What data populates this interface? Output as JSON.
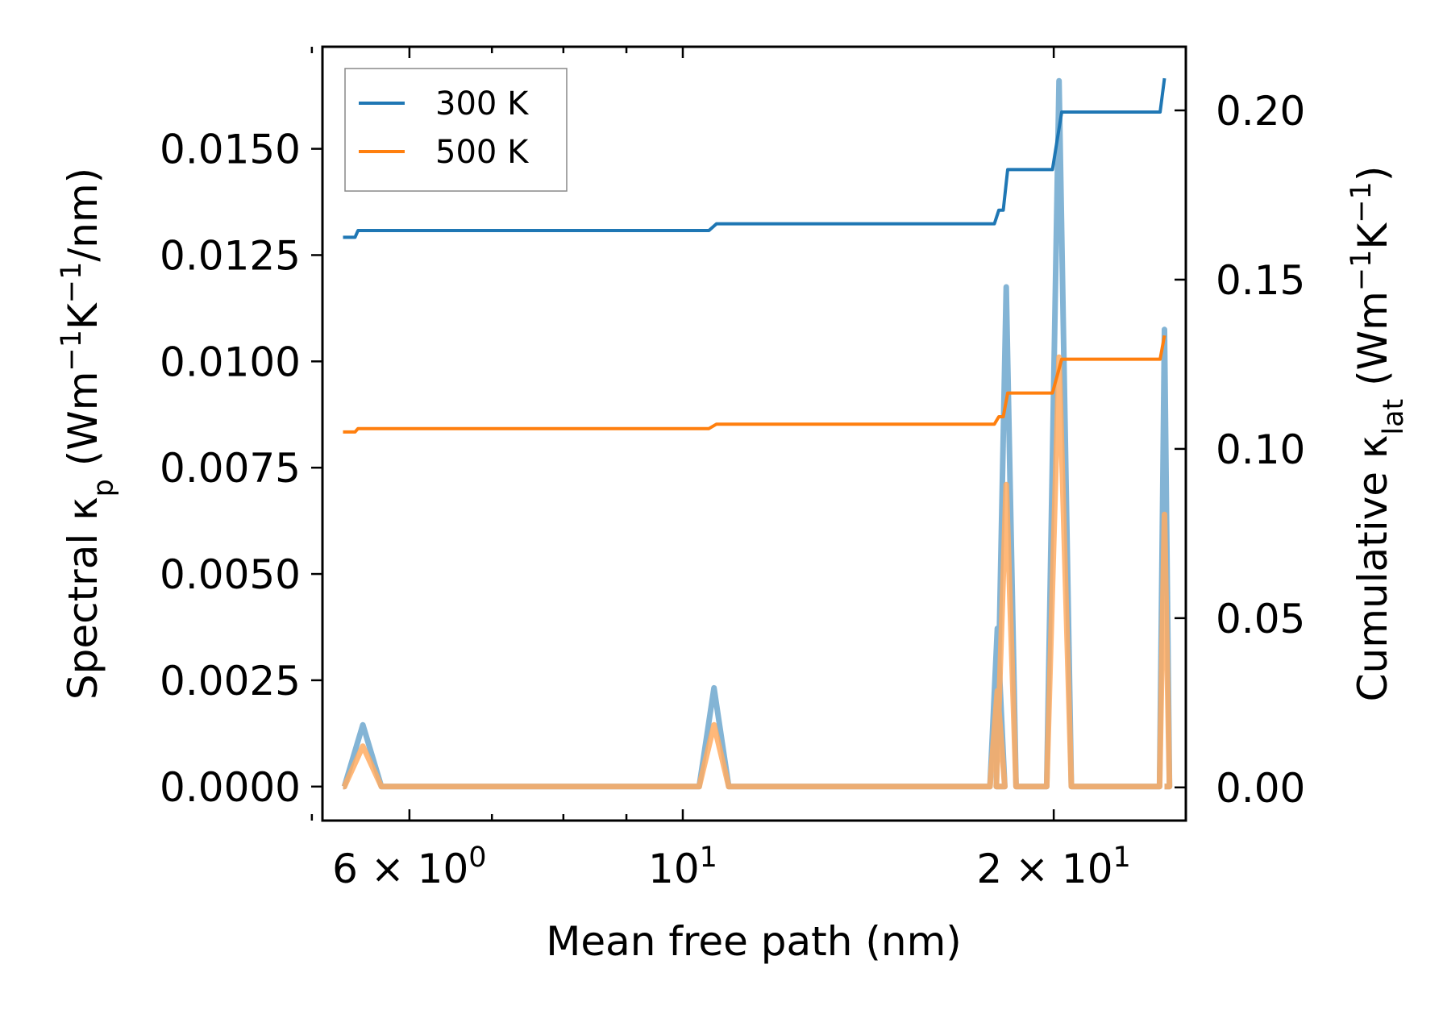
{
  "chart_data": {
    "type": "line",
    "xscale": "log",
    "xlabel": "Mean free path (nm)",
    "ylabel_left": {
      "prefix": "Spectral κ",
      "sub": "p",
      "units_a": " (Wm",
      "sup1": "−1",
      "units_b": "K",
      "sup2": "−1",
      "units_c": "/nm)"
    },
    "ylabel_right": {
      "prefix": "Cumulative κ",
      "sub": "lat",
      "units_a": " (Wm",
      "sup1": "−1",
      "units_b": "K",
      "sup2": "−1",
      "units_c": ")"
    },
    "xlim": [
      5.1,
      25.6
    ],
    "ylim_left": [
      -0.0008,
      0.0174
    ],
    "ylim_right": [
      -0.0098,
      0.2188
    ],
    "x_ticks": [
      {
        "value": 6,
        "mant": "6",
        "times": " × ",
        "base": "10",
        "exp": "0"
      },
      {
        "value": 10,
        "mant": "",
        "times": "",
        "base": "10",
        "exp": "1"
      },
      {
        "value": 20,
        "mant": "2",
        "times": " × ",
        "base": "10",
        "exp": "1"
      }
    ],
    "x_minor_ticks": [
      5,
      7,
      8,
      9
    ],
    "y_left_ticks": [
      {
        "value": 0.0,
        "label": "0.0000"
      },
      {
        "value": 0.0025,
        "label": "0.0025"
      },
      {
        "value": 0.005,
        "label": "0.0050"
      },
      {
        "value": 0.0075,
        "label": "0.0075"
      },
      {
        "value": 0.01,
        "label": "0.0100"
      },
      {
        "value": 0.0125,
        "label": "0.0125"
      },
      {
        "value": 0.015,
        "label": "0.0150"
      }
    ],
    "y_right_ticks": [
      {
        "value": 0.0,
        "label": "0.00"
      },
      {
        "value": 0.05,
        "label": "0.05"
      },
      {
        "value": 0.1,
        "label": "0.10"
      },
      {
        "value": 0.15,
        "label": "0.15"
      },
      {
        "value": 0.2,
        "label": "0.20"
      }
    ],
    "legend": {
      "position": "top-left",
      "entries": [
        {
          "name": "300 K",
          "color": "#1f77b4"
        },
        {
          "name": "500 K",
          "color": "#ff7f0e"
        }
      ]
    },
    "series": [
      {
        "name": "300 K",
        "color": "#1f77b4",
        "axis": "right",
        "x": [
          5.3,
          5.42,
          5.45,
          10.5,
          10.65,
          17.9,
          18.05,
          18.2,
          18.35,
          19.95,
          20.3,
          24.4,
          24.6
        ],
        "y": [
          0.1625,
          0.1625,
          0.1645,
          0.1645,
          0.1665,
          0.1665,
          0.1705,
          0.1705,
          0.1825,
          0.1825,
          0.1995,
          0.1995,
          0.2095
        ]
      },
      {
        "name": "500 K",
        "color": "#ff7f0e",
        "axis": "right",
        "x": [
          5.3,
          5.42,
          5.45,
          10.5,
          10.65,
          17.9,
          18.05,
          18.2,
          18.35,
          19.95,
          20.3,
          24.4,
          24.6
        ],
        "y": [
          0.105,
          0.105,
          0.106,
          0.106,
          0.1073,
          0.1073,
          0.1095,
          0.1095,
          0.1165,
          0.1165,
          0.1265,
          0.1265,
          0.1335
        ]
      }
    ],
    "spectral_series": [
      {
        "name": "300 K",
        "color": "#1f77b4",
        "axis": "left",
        "peaks": [
          {
            "x": 5.5,
            "w": 0.015,
            "y": 0.00145
          },
          {
            "x": 10.6,
            "w": 0.012,
            "y": 0.00232
          },
          {
            "x": 18.0,
            "w": 0.006,
            "y": 0.00372
          },
          {
            "x": 18.3,
            "w": 0.008,
            "y": 0.01175
          },
          {
            "x": 20.2,
            "w": 0.01,
            "y": 0.0166
          },
          {
            "x": 24.6,
            "w": 0.004,
            "y": 0.01075
          }
        ]
      },
      {
        "name": "500 K",
        "color": "#ff7f0e",
        "axis": "left",
        "peaks": [
          {
            "x": 5.5,
            "w": 0.015,
            "y": 0.00095
          },
          {
            "x": 10.6,
            "w": 0.012,
            "y": 0.00145
          },
          {
            "x": 18.0,
            "w": 0.006,
            "y": 0.00225
          },
          {
            "x": 18.3,
            "w": 0.008,
            "y": 0.0071
          },
          {
            "x": 20.2,
            "w": 0.01,
            "y": 0.0101
          },
          {
            "x": 24.6,
            "w": 0.004,
            "y": 0.0064
          }
        ]
      }
    ]
  }
}
